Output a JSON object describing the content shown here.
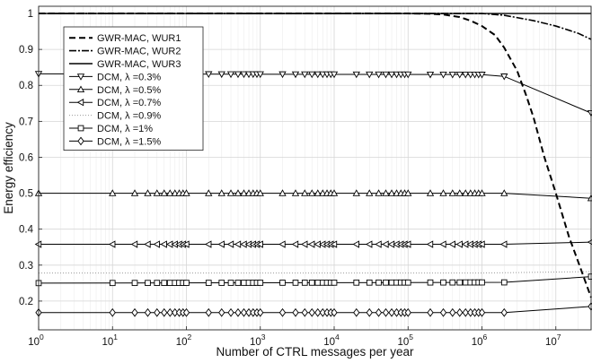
{
  "chart_data": {
    "type": "line",
    "title": "",
    "xlabel": "Number of CTRL messages per year",
    "ylabel": "Energy efficiency",
    "x_scale": "log",
    "xlim": [
      1,
      30000000
    ],
    "ylim": [
      0.12,
      1.02
    ],
    "grid": true,
    "legend_position": "top-left",
    "x_ticks": [
      {
        "value": 1,
        "base": "10",
        "exp": "0"
      },
      {
        "value": 10,
        "base": "10",
        "exp": "1"
      },
      {
        "value": 100,
        "base": "10",
        "exp": "2"
      },
      {
        "value": 1000,
        "base": "10",
        "exp": "3"
      },
      {
        "value": 10000,
        "base": "10",
        "exp": "4"
      },
      {
        "value": 100000,
        "base": "10",
        "exp": "5"
      },
      {
        "value": 1000000,
        "base": "10",
        "exp": "6"
      },
      {
        "value": 10000000,
        "base": "10",
        "exp": "7"
      }
    ],
    "y_ticks": [
      {
        "value": 0.2,
        "label": "0.2"
      },
      {
        "value": 0.3,
        "label": "0.3"
      },
      {
        "value": 0.4,
        "label": "0.4"
      },
      {
        "value": 0.5,
        "label": "0.5"
      },
      {
        "value": 0.6,
        "label": "0.6"
      },
      {
        "value": 0.7,
        "label": "0.7"
      },
      {
        "value": 0.8,
        "label": "0.8"
      },
      {
        "value": 0.9,
        "label": "0.9"
      },
      {
        "value": 1,
        "label": "1"
      }
    ],
    "marker_x": [
      1,
      10,
      20,
      30,
      40,
      50,
      60,
      70,
      80,
      90,
      100,
      200,
      300,
      400,
      500,
      600,
      700,
      800,
      900,
      1000,
      2000,
      3000,
      4000,
      5000,
      6000,
      7000,
      8000,
      9000,
      10000,
      20000,
      30000,
      40000,
      50000,
      60000,
      70000,
      80000,
      90000,
      100000,
      200000,
      300000,
      400000,
      500000,
      600000,
      700000,
      800000,
      900000,
      1000000,
      2000000,
      30000000
    ],
    "series": [
      {
        "name": "GWR-MAC, WUR1",
        "color": "#000000",
        "dash": "7,4",
        "width": 2,
        "marker": "none",
        "points": [
          [
            1,
            1
          ],
          [
            100000,
            1
          ],
          [
            200000,
            0.999
          ],
          [
            300000,
            0.997
          ],
          [
            500000,
            0.99
          ],
          [
            700000,
            0.98
          ],
          [
            1000000,
            0.965
          ],
          [
            1500000,
            0.94
          ],
          [
            2000000,
            0.905
          ],
          [
            3000000,
            0.84
          ],
          [
            4000000,
            0.77
          ],
          [
            5000000,
            0.71
          ],
          [
            7000000,
            0.6
          ],
          [
            10000000,
            0.5
          ],
          [
            15000000,
            0.38
          ],
          [
            20000000,
            0.31
          ],
          [
            30000000,
            0.21
          ]
        ]
      },
      {
        "name": "GWR-MAC, WUR2",
        "color": "#000000",
        "dash": "8,2,2,2",
        "width": 1.6,
        "marker": "none",
        "points": [
          [
            1,
            1
          ],
          [
            1000000,
            1
          ],
          [
            2000000,
            0.995
          ],
          [
            5000000,
            0.98
          ],
          [
            10000000,
            0.965
          ],
          [
            20000000,
            0.945
          ],
          [
            30000000,
            0.928
          ]
        ]
      },
      {
        "name": "GWR-MAC, WUR3",
        "color": "#000000",
        "dash": "",
        "width": 1.4,
        "marker": "none",
        "points": [
          [
            1,
            1
          ],
          [
            30000000,
            1
          ]
        ]
      },
      {
        "name": "DCM, λ =0.3%",
        "color": "#000000",
        "dash": "",
        "width": 1,
        "marker": "triangle-down",
        "points": [
          [
            1,
            0.832
          ],
          [
            1000000,
            0.83
          ],
          [
            2000000,
            0.825
          ],
          [
            30000000,
            0.723
          ]
        ]
      },
      {
        "name": "DCM, λ =0.5%",
        "color": "#000000",
        "dash": "",
        "width": 1,
        "marker": "triangle-up",
        "points": [
          [
            1,
            0.5
          ],
          [
            2000000,
            0.5
          ],
          [
            30000000,
            0.486
          ]
        ]
      },
      {
        "name": "DCM, λ =0.7%",
        "color": "#000000",
        "dash": "",
        "width": 1,
        "marker": "triangle-left",
        "points": [
          [
            1,
            0.358
          ],
          [
            2000000,
            0.358
          ],
          [
            30000000,
            0.364
          ]
        ]
      },
      {
        "name": "DCM, λ =0.9%",
        "color": "#9a9a9a",
        "dash": "1,2",
        "width": 1,
        "marker": "none",
        "points": [
          [
            1,
            0.278
          ],
          [
            1000000,
            0.278
          ],
          [
            30000000,
            0.282
          ]
        ]
      },
      {
        "name": "DCM, λ =1%",
        "color": "#000000",
        "dash": "",
        "width": 1,
        "marker": "square",
        "points": [
          [
            1,
            0.25
          ],
          [
            2000000,
            0.252
          ],
          [
            30000000,
            0.268
          ]
        ]
      },
      {
        "name": "DCM, λ =1.5%",
        "color": "#000000",
        "dash": "",
        "width": 1,
        "marker": "diamond",
        "points": [
          [
            1,
            0.168
          ],
          [
            2000000,
            0.168
          ],
          [
            30000000,
            0.185
          ]
        ]
      }
    ]
  }
}
